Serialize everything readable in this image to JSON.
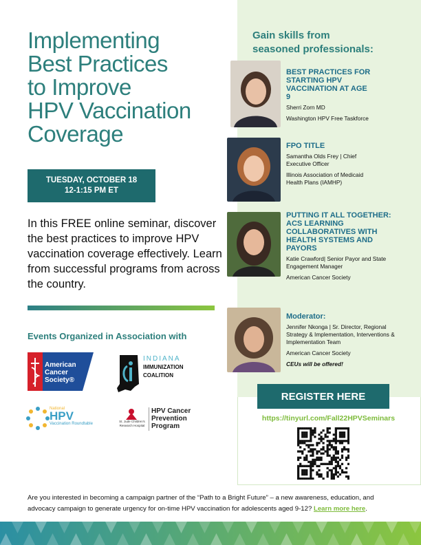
{
  "title": {
    "lines": [
      "Implementing",
      "Best Practices",
      "to Improve",
      "HPV Vaccination",
      "Coverage"
    ]
  },
  "date": {
    "day": "TUESDAY, OCTOBER 18",
    "time": "12-1:15 PM ET"
  },
  "intro": "In this FREE online seminar, discover the best practices to improve HPV vaccination coverage effectively. Learn from successful programs from across the country.",
  "association": {
    "heading": "Events Organized in Association with",
    "logos": {
      "acs": "American Cancer Society®",
      "indiana": [
        "INDIANA",
        "IMMUNIZATION",
        "COALITION"
      ],
      "hpv_roundtable": [
        "National",
        "HPV",
        "Vaccination Roundtable"
      ],
      "st_jude": [
        "St. Jude Children's",
        "Research Hospital"
      ],
      "hpv_program": [
        "HPV Cancer",
        "Prevention",
        "Program"
      ]
    }
  },
  "panel": {
    "heading": [
      "Gain skills from",
      "seasoned professionals:"
    ],
    "speakers": [
      {
        "title": "BEST PRACTICES FOR STARTING HPV VACCINATION AT AGE 9",
        "name": "Sherri Zorn MD",
        "org": "Washington HPV Free Taskforce"
      },
      {
        "title": "FPO TITLE",
        "name": "Samantha Olds Frey | Chief Executive Officer",
        "org": "Illinois Association of Medicaid Health Plans (IAMHP)"
      },
      {
        "title": "PUTTING IT ALL TOGETHER: ACS LEARNING COLLABORATIVES WITH HEALTH SYSTEMS AND PAYORS",
        "name": "Katie Crawford| Senior Payor and State Engagement Manager",
        "org": "American Cancer Society"
      },
      {
        "title": "Moderator:",
        "name": "Jennifer Nkonga | Sr. Director, Regional Strategy & Implementation, Interventions & Implementation Team",
        "org": "American Cancer Society",
        "note": "CEUs will be offered!"
      }
    ]
  },
  "register": {
    "button": "REGISTER HERE",
    "url": "https://tinyurl.com/Fall22HPVSeminars"
  },
  "footer": {
    "text": "Are you interested in becoming a campaign partner of the “Path to a Bright Future” – a new awareness, education, and advocacy campaign to generate urgency for on-time HPV vaccination for adolescents aged 9-12?",
    "link": "Learn more here",
    "end": "."
  }
}
